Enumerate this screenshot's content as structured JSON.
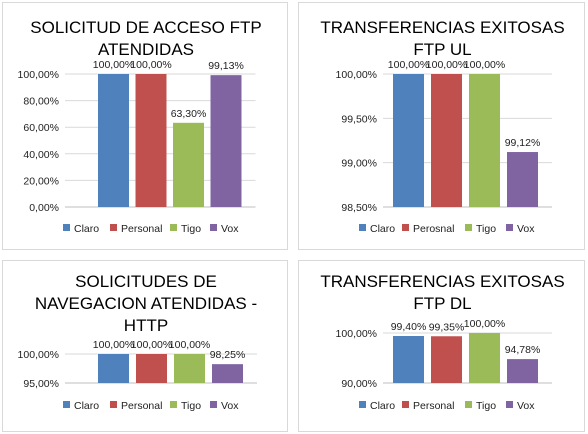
{
  "colors": {
    "claro": "#4F81BD",
    "personal": "#C0504D",
    "tigo": "#9BBB59",
    "vox": "#8064A2",
    "grid": "#d9d9d9",
    "axis": "#bfbfbf"
  },
  "chart_data": [
    {
      "type": "bar",
      "title": [
        "SOLICITUD DE ACCESO FTP",
        "ATENDIDAS"
      ],
      "categories": [
        "Claro",
        "Personal",
        "Tigo",
        "Vox"
      ],
      "values": [
        100.0,
        100.0,
        63.3,
        99.13
      ],
      "value_labels": [
        "100,00%",
        "100,00%",
        "63,30%",
        "99,13%"
      ],
      "ylim": [
        0,
        100
      ],
      "y_ticks": [
        "0,00%",
        "20,00%",
        "40,00%",
        "60,00%",
        "80,00%",
        "100,00%"
      ],
      "y_tick_values": [
        0,
        20,
        40,
        60,
        80,
        100
      ],
      "legend": [
        "Claro",
        "Personal",
        "Tigo",
        "Vox"
      ],
      "legend_position": "bottom",
      "grid": true
    },
    {
      "type": "bar",
      "title": [
        "TRANSFERENCIAS EXITOSAS",
        "FTP UL"
      ],
      "categories": [
        "Claro",
        "Perosnal",
        "Tigo",
        "Vox"
      ],
      "values": [
        100.0,
        100.0,
        100.0,
        99.12
      ],
      "value_labels": [
        "100,00%",
        "100,00%",
        "100,00%",
        "99,12%"
      ],
      "ylim": [
        98.5,
        100
      ],
      "y_ticks": [
        "98,50%",
        "99,00%",
        "99,50%",
        "100,00%"
      ],
      "y_tick_values": [
        98.5,
        99.0,
        99.5,
        100.0
      ],
      "legend": [
        "Claro",
        "Perosnal",
        "Tigo",
        "Vox"
      ],
      "legend_position": "bottom",
      "grid": true
    },
    {
      "type": "bar",
      "title": [
        "SOLICITUDES DE",
        "NAVEGACION ATENDIDAS -",
        "HTTP"
      ],
      "categories": [
        "Claro",
        "Personal",
        "Tigo",
        "Vox"
      ],
      "values": [
        100.0,
        100.0,
        100.0,
        98.25
      ],
      "value_labels": [
        "100,00%",
        "100,00%",
        "100,00%",
        "98,25%"
      ],
      "ylim": [
        95,
        100
      ],
      "y_ticks": [
        "95,00%",
        "100,00%"
      ],
      "y_tick_values": [
        95,
        100
      ],
      "legend": [
        "Claro",
        "Personal",
        "Tigo",
        "Vox"
      ],
      "legend_position": "bottom",
      "grid": true
    },
    {
      "type": "bar",
      "title": [
        "TRANSFERENCIAS EXITOSAS",
        "FTP DL"
      ],
      "categories": [
        "Claro",
        "Personal",
        "Tigo",
        "Vox"
      ],
      "values": [
        99.4,
        99.35,
        100.0,
        94.78
      ],
      "value_labels": [
        "99,40%",
        "99,35%",
        "100,00%",
        "94,78%"
      ],
      "ylim": [
        90,
        100
      ],
      "y_ticks": [
        "90,00%",
        "100,00%"
      ],
      "y_tick_values": [
        90,
        100
      ],
      "legend": [
        "Claro",
        "Personal",
        "Tigo",
        "Vox"
      ],
      "legend_position": "bottom",
      "grid": true
    }
  ]
}
